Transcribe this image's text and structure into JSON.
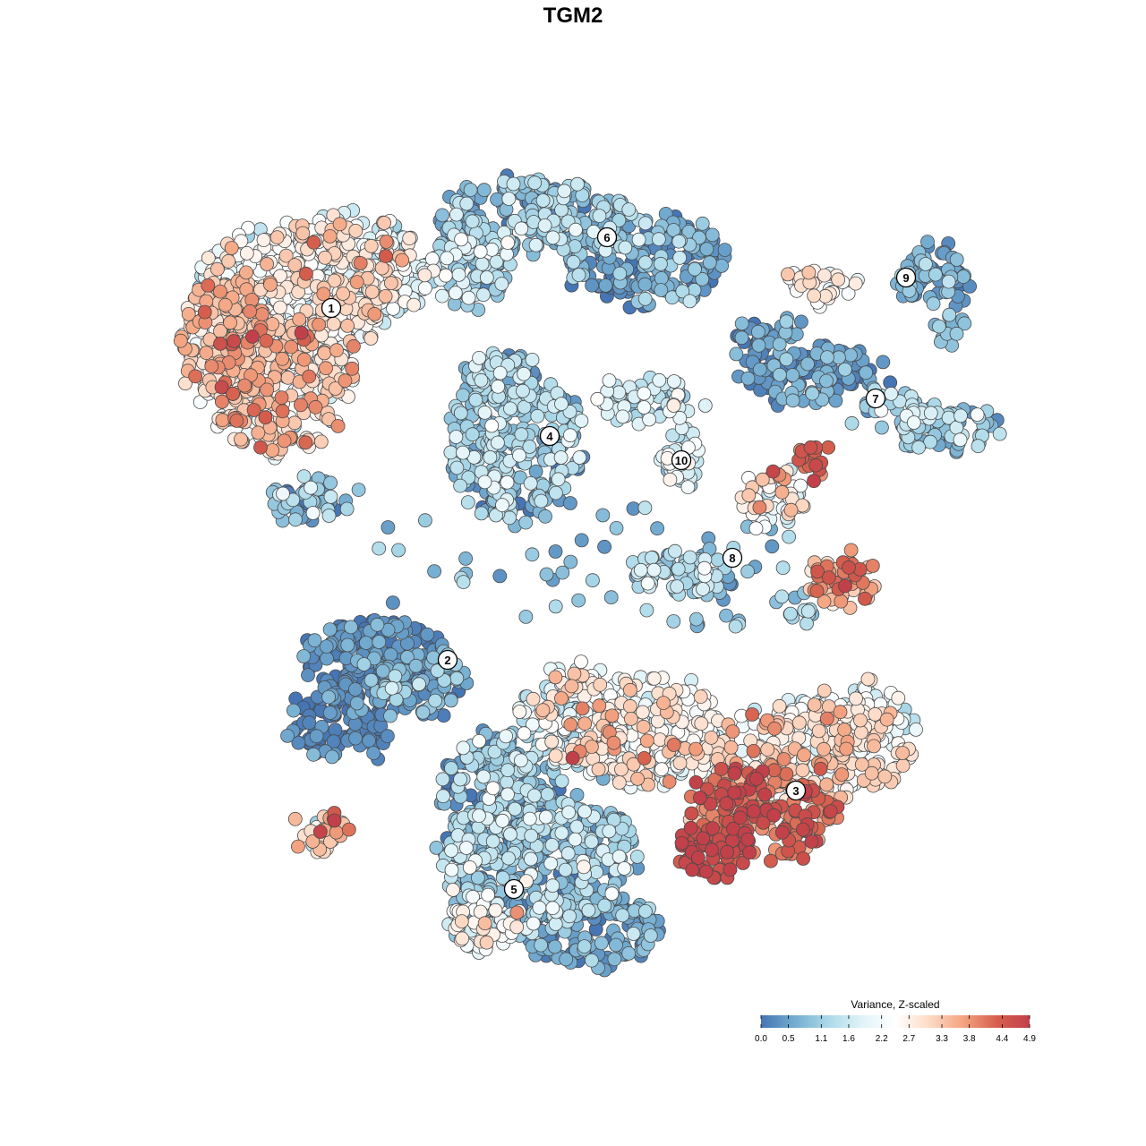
{
  "chart_data": {
    "type": "scatter",
    "title": "TGM2",
    "legend": {
      "title": "Variance, Z-scaled",
      "placement": "bottom-right",
      "range": [
        0.0,
        4.9
      ],
      "ticks": [
        "0.0",
        "0.5",
        "1.1",
        "1.6",
        "2.2",
        "2.7",
        "3.3",
        "3.8",
        "4.4",
        "4.9"
      ],
      "colors": [
        "#4575b4",
        "#74add1",
        "#abd9e9",
        "#e0f3f8",
        "#ffffff",
        "#fddbc7",
        "#f4a582",
        "#d6604d",
        "#c2404a"
      ]
    },
    "clusters": [
      {
        "label": "1",
        "mean_value": 2.6
      },
      {
        "label": "2",
        "mean_value": 0.3
      },
      {
        "label": "3",
        "mean_value": 3.6
      },
      {
        "label": "4",
        "mean_value": 1.0
      },
      {
        "label": "5",
        "mean_value": 1.0
      },
      {
        "label": "6",
        "mean_value": 0.8
      },
      {
        "label": "7",
        "mean_value": 1.1
      },
      {
        "label": "8",
        "mean_value": 2.0
      },
      {
        "label": "9",
        "mean_value": 0.8
      },
      {
        "label": "10",
        "mean_value": 1.8
      }
    ],
    "grid": false,
    "axes": "none"
  }
}
